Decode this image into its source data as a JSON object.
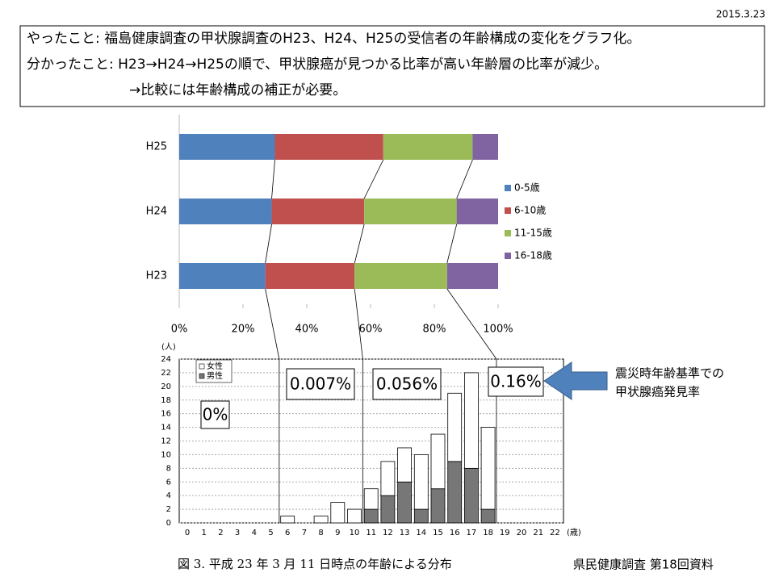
{
  "date": "2015.3.23",
  "header": {
    "lines": [
      "やったこと: 福島健康調査の甲状腺調査のH23、H24、H25の受信者の年齢構成の変化をグラフ化。",
      "分かったこと: H23→H24→H25の順で、甲状腺癌が見つかる比率が高い年齢層の比率が減少。",
      "→比較には年齢構成の補正が必要。"
    ]
  },
  "annotations": {
    "rates": [
      "0%",
      "0.007%",
      "0.056%",
      "0.16%"
    ],
    "arrow_text": [
      "震災時年齢基準での",
      "甲状腺癌発見率"
    ]
  },
  "caption": "図 3. 平成 23 年 3 月 11 日時点の年齢による分布",
  "source": "県民健康調査 第18回資料",
  "chart_data": [
    {
      "type": "stacked-barh",
      "categories": [
        "H25",
        "H24",
        "H23"
      ],
      "series": [
        {
          "name": "0-5歳",
          "color": "#4f81bd",
          "values": [
            30,
            29,
            27
          ]
        },
        {
          "name": "6-10歳",
          "color": "#c0504d",
          "values": [
            34,
            29,
            28
          ]
        },
        {
          "name": "11-15歳",
          "color": "#9bbb59",
          "values": [
            28,
            29,
            29
          ]
        },
        {
          "name": "16-18歳",
          "color": "#8064a2",
          "values": [
            8,
            13,
            16
          ]
        }
      ],
      "xlim": [
        0,
        100
      ],
      "xticks": [
        {
          "value": 0,
          "label": "0%"
        },
        {
          "value": 20,
          "label": "20%"
        },
        {
          "value": 40,
          "label": "40%"
        },
        {
          "value": 60,
          "label": "60%"
        },
        {
          "value": 80,
          "label": "80%"
        },
        {
          "value": 100,
          "label": "100%"
        }
      ],
      "legend": "right"
    },
    {
      "type": "stacked-bar",
      "ylabel": "(人)",
      "xlabel": "(歳)",
      "categories": [
        "0",
        "1",
        "2",
        "3",
        "4",
        "5",
        "6",
        "7",
        "8",
        "9",
        "10",
        "11",
        "12",
        "13",
        "14",
        "15",
        "16",
        "17",
        "18",
        "19",
        "20",
        "21",
        "22"
      ],
      "series": [
        {
          "name": "男性",
          "color": "#777777",
          "values": [
            0,
            0,
            0,
            0,
            0,
            0,
            0,
            0,
            0,
            0,
            0,
            2,
            4,
            6,
            2,
            5,
            9,
            8,
            2,
            0,
            0,
            0,
            0
          ]
        },
        {
          "name": "女性",
          "color": "#ffffff",
          "values": [
            0,
            0,
            0,
            0,
            0,
            0,
            1,
            0,
            1,
            3,
            2,
            3,
            5,
            5,
            8,
            8,
            10,
            14,
            12,
            0,
            0,
            0,
            0
          ]
        }
      ],
      "ylim": [
        0,
        24
      ],
      "yticks": [
        0,
        2,
        4,
        6,
        8,
        10,
        12,
        14,
        16,
        18,
        20,
        22,
        24
      ],
      "grid": true,
      "legend": "upper left"
    }
  ]
}
